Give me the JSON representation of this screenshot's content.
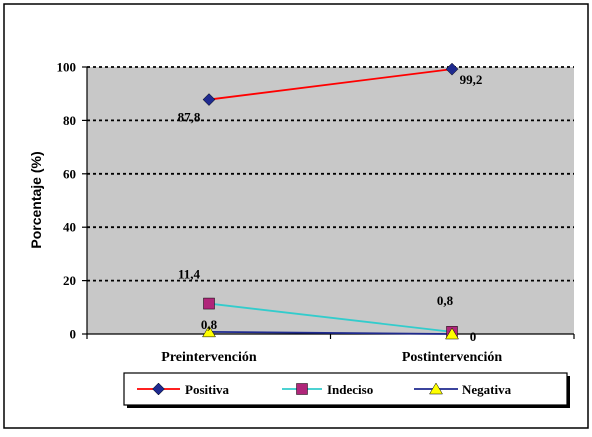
{
  "chart_data": {
    "type": "line",
    "title": "",
    "xlabel": "",
    "ylabel": "Porcentaje (%)",
    "categories": [
      "Preintervención",
      "Postintervención"
    ],
    "ylim": [
      0,
      100
    ],
    "yticks": [
      0,
      20,
      40,
      60,
      80,
      100
    ],
    "grid": "horizontal-dotted",
    "legend_position": "bottom",
    "plot_background": "#c8c8c8",
    "series": [
      {
        "name": "Positiva",
        "values": [
          87.8,
          99.2
        ],
        "labels": [
          "87,8",
          "99,2"
        ],
        "line_color": "#ff0000",
        "marker": "diamond",
        "marker_color": "#1f2a8f"
      },
      {
        "name": "Indeciso",
        "values": [
          11.4,
          0.8
        ],
        "labels": [
          "11,4",
          "0,8"
        ],
        "line_color": "#33cccc",
        "marker": "square",
        "marker_color": "#b0267a"
      },
      {
        "name": "Negativa",
        "values": [
          0.8,
          0
        ],
        "labels": [
          "0,8",
          "0"
        ],
        "line_color": "#1f2a8f",
        "marker": "triangle",
        "marker_color": "#ffff00"
      }
    ]
  }
}
